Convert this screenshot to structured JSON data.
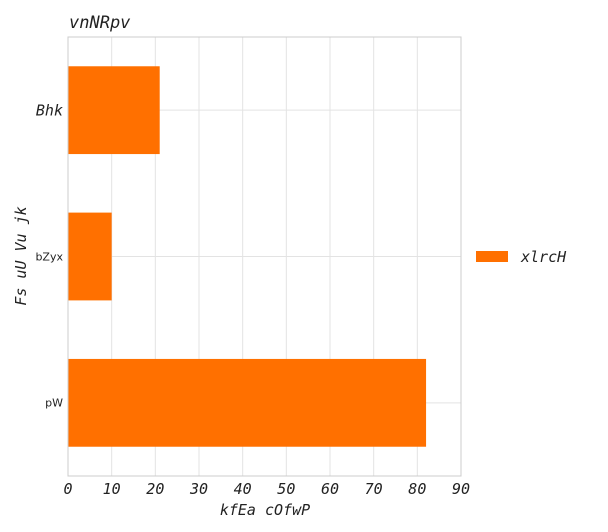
{
  "chart_data": {
    "type": "bar",
    "orientation": "horizontal",
    "title": "vnNRpv",
    "xlabel": "kfEa cOfwP",
    "ylabel": "Fs uU Vu jk",
    "categories": [
      "Bhk",
      "bZyx",
      "pW"
    ],
    "series": [
      {
        "name": "xlrcH",
        "values": [
          21,
          10,
          82
        ],
        "color": "#ff7000"
      }
    ],
    "xlim": [
      0,
      90
    ],
    "xticks": [
      0,
      10,
      20,
      30,
      40,
      50,
      60,
      70,
      80,
      90
    ],
    "grid": true,
    "legend_position": "right"
  }
}
